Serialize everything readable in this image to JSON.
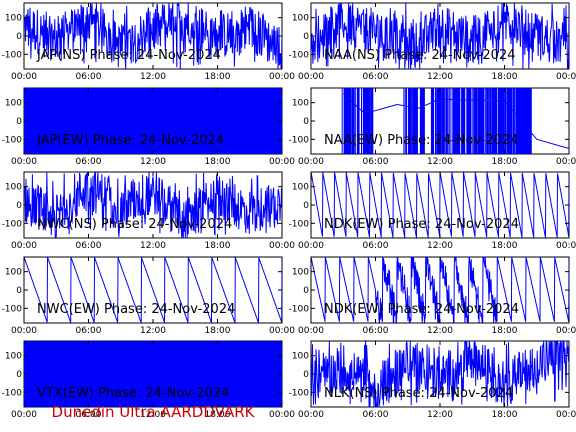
{
  "footer": {
    "credit": "Dunedin Ultra AARDDVARK"
  },
  "colors": {
    "trace": "#0000ff",
    "footer": "#cc0000",
    "axes": "#000000"
  },
  "chart_data": [
    {
      "type": "line",
      "title": "JAP(NS) Phase: 24-Nov-2024",
      "x_range": [
        "00:00",
        "24:00"
      ],
      "ylim": [
        -180,
        180
      ],
      "x_ticks": [
        "00:00",
        "06:00",
        "12:00",
        "18:00",
        "00:00"
      ],
      "y_ticks": [
        100,
        0,
        -100
      ],
      "pattern": "noise",
      "series": [
        {
          "x": [
            "00:00",
            "03:00",
            "06:00",
            "09:00",
            "12:00",
            "15:00",
            "18:00",
            "21:00",
            "24:00"
          ],
          "y": [
            60,
            -20,
            90,
            -60,
            40,
            100,
            -10,
            50,
            -80
          ]
        }
      ]
    },
    {
      "type": "line",
      "title": "NAA(NS) Phase: 24-Nov-2024",
      "x_range": [
        "00:00",
        "24:00"
      ],
      "ylim": [
        -180,
        180
      ],
      "x_ticks": [
        "00:00",
        "06:00",
        "12:00",
        "18:00",
        "00:00"
      ],
      "y_ticks": [
        100,
        0,
        -100
      ],
      "pattern": "noise",
      "series": [
        {
          "x": [
            "00:00",
            "03:00",
            "06:00",
            "09:00",
            "12:00",
            "15:00",
            "18:00",
            "21:00",
            "24:00"
          ],
          "y": [
            -40,
            80,
            20,
            -90,
            60,
            -30,
            110,
            0,
            -60
          ]
        }
      ]
    },
    {
      "type": "line",
      "title": "JAP(EW) Phase: 24-Nov-2024",
      "x_range": [
        "00:00",
        "24:00"
      ],
      "ylim": [
        -180,
        180
      ],
      "x_ticks": [
        "00:00",
        "06:00",
        "12:00",
        "18:00",
        "00:00"
      ],
      "y_ticks": [
        100,
        0,
        -100
      ],
      "pattern": "saturated",
      "series": [
        {
          "x": [
            "00:00",
            "24:00"
          ],
          "y": [
            -180,
            180
          ]
        }
      ]
    },
    {
      "type": "line",
      "title": "NAA(EW) Phase: 24-Nov-2024",
      "x_range": [
        "00:00",
        "24:00"
      ],
      "ylim": [
        -180,
        180
      ],
      "x_ticks": [
        "00:00",
        "06:00",
        "12:00",
        "18:00",
        "00:00"
      ],
      "y_ticks": [
        100,
        0,
        -100
      ],
      "pattern": "naa_ew",
      "series": [
        {
          "x": [
            "03:00",
            "05:00",
            "08:00",
            "10:00",
            "12:00",
            "18:00",
            "21:00",
            "24:00"
          ],
          "y": [
            150,
            40,
            90,
            70,
            120,
            110,
            -100,
            -150
          ]
        }
      ]
    },
    {
      "type": "line",
      "title": "NWC(NS) Phase: 24-Nov-2024",
      "x_range": [
        "00:00",
        "24:00"
      ],
      "ylim": [
        -180,
        180
      ],
      "x_ticks": [
        "00:00",
        "06:00",
        "12:00",
        "18:00",
        "00:00"
      ],
      "y_ticks": [
        100,
        0,
        -100
      ],
      "pattern": "noise",
      "series": [
        {
          "x": [
            "00:00",
            "03:00",
            "06:00",
            "09:00",
            "12:00",
            "15:00",
            "18:00",
            "21:00",
            "24:00"
          ],
          "y": [
            30,
            -70,
            110,
            -20,
            80,
            -100,
            50,
            -40,
            20
          ]
        }
      ]
    },
    {
      "type": "line",
      "title": "NDK(EW) Phase: 24-Nov-2024",
      "x_range": [
        "00:00",
        "24:00"
      ],
      "ylim": [
        -180,
        180
      ],
      "x_ticks": [
        "00:00",
        "06:00",
        "12:00",
        "18:00",
        "00:00"
      ],
      "y_ticks": [
        100,
        0,
        -100
      ],
      "pattern": "sawtooth",
      "cycles": 22,
      "series": [
        {
          "x": [
            "00:00",
            "24:00"
          ],
          "y": [
            180,
            -180
          ]
        }
      ]
    },
    {
      "type": "line",
      "title": "NWC(EW) Phase: 24-Nov-2024",
      "x_range": [
        "00:00",
        "24:00"
      ],
      "ylim": [
        -180,
        180
      ],
      "x_ticks": [
        "00:00",
        "06:00",
        "12:00",
        "18:00",
        "00:00"
      ],
      "y_ticks": [
        100,
        0,
        -100
      ],
      "pattern": "sawtooth",
      "cycles": 11,
      "series": [
        {
          "x": [
            "00:00",
            "24:00"
          ],
          "y": [
            180,
            -180
          ]
        }
      ]
    },
    {
      "type": "line",
      "title": "NDK(EW) Phase: 24-Nov-2024",
      "x_range": [
        "00:00",
        "24:00"
      ],
      "ylim": [
        -180,
        180
      ],
      "x_ticks": [
        "00:00",
        "06:00",
        "12:00",
        "18:00",
        "00:00"
      ],
      "y_ticks": [
        100,
        0,
        -100
      ],
      "pattern": "sawtooth_noisy",
      "cycles": 18,
      "series": [
        {
          "x": [
            "00:00",
            "24:00"
          ],
          "y": [
            180,
            -180
          ]
        }
      ]
    },
    {
      "type": "line",
      "title": "VTX(EW) Phase: 24-Nov-2024",
      "x_range": [
        "00:00",
        "24:00"
      ],
      "ylim": [
        -180,
        180
      ],
      "x_ticks": [
        "00:00",
        "06:00",
        "12:00",
        "18:00",
        "00:00"
      ],
      "y_ticks": [
        100,
        0,
        -100
      ],
      "pattern": "saturated",
      "series": [
        {
          "x": [
            "00:00",
            "24:00"
          ],
          "y": [
            -180,
            180
          ]
        }
      ]
    },
    {
      "type": "line",
      "title": "NLK(NS) Phase: 24-Nov-2024",
      "x_range": [
        "00:00",
        "24:00"
      ],
      "ylim": [
        -180,
        180
      ],
      "x_ticks": [
        "00:00",
        "06:00",
        "12:00",
        "18:00",
        "00:00"
      ],
      "y_ticks": [
        100,
        0,
        -100
      ],
      "pattern": "noise",
      "series": [
        {
          "x": [
            "00:00",
            "03:00",
            "06:00",
            "09:00",
            "12:00",
            "15:00",
            "18:00",
            "21:00",
            "24:00"
          ],
          "y": [
            -60,
            40,
            -120,
            80,
            -30,
            100,
            -70,
            60,
            140
          ]
        }
      ]
    }
  ]
}
